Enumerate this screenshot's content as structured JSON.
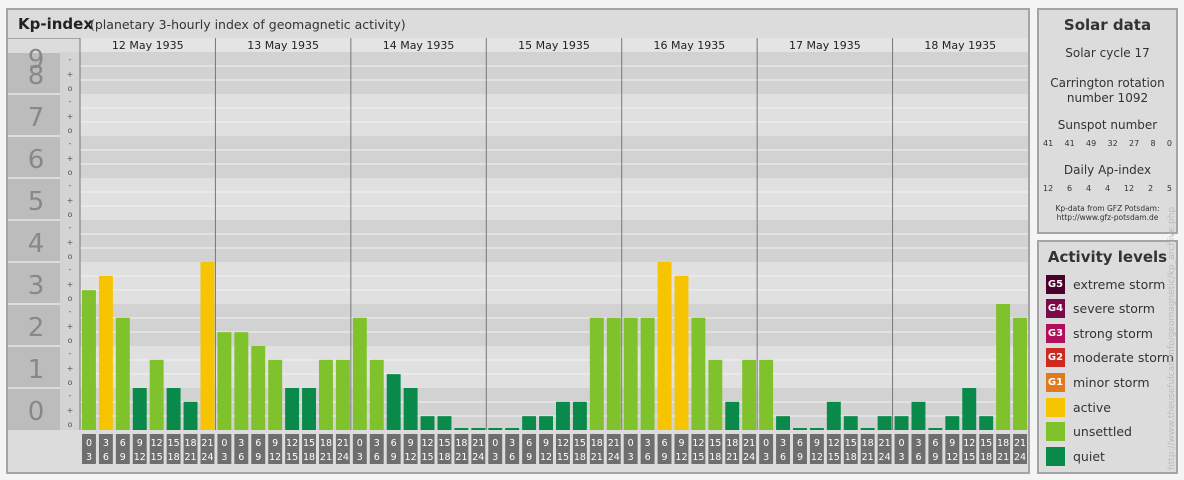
{
  "header": {
    "title": "Kp-index",
    "subtitle": "(planetary 3-hourly index of geomagnetic activity)"
  },
  "chart_data": {
    "type": "bar",
    "title": "Kp-index",
    "subtitle": "(planetary 3-hourly index of geomagnetic activity)",
    "ylim": [
      0,
      9
    ],
    "y_ticks": [
      "0",
      "1",
      "2",
      "3",
      "4",
      "5",
      "6",
      "7",
      "8",
      "9"
    ],
    "sub_ticks": [
      "-",
      "o",
      "+"
    ],
    "days": [
      "12 May 1935",
      "13 May 1935",
      "14 May 1935",
      "15 May 1935",
      "16 May 1935",
      "17 May 1935",
      "18 May 1935"
    ],
    "intervals": [
      [
        "0",
        "3"
      ],
      [
        "3",
        "6"
      ],
      [
        "6",
        "9"
      ],
      [
        "9",
        "12"
      ],
      [
        "12",
        "15"
      ],
      [
        "15",
        "18"
      ],
      [
        "18",
        "21"
      ],
      [
        "21",
        "24"
      ]
    ],
    "values": [
      [
        3.33,
        3.67,
        2.67,
        1.0,
        1.67,
        1.0,
        0.67,
        4.0
      ],
      [
        2.33,
        2.33,
        2.0,
        1.67,
        1.0,
        1.0,
        1.67,
        1.67
      ],
      [
        2.67,
        1.67,
        1.33,
        1.0,
        0.33,
        0.33,
        0.0,
        0.0
      ],
      [
        0.0,
        0.0,
        0.33,
        0.33,
        0.67,
        0.67,
        2.67,
        2.67
      ],
      [
        2.67,
        2.67,
        4.0,
        3.67,
        2.67,
        1.67,
        0.67,
        1.67
      ],
      [
        1.67,
        0.33,
        0.0,
        0.0,
        0.67,
        0.33,
        0.0,
        0.33
      ],
      [
        0.33,
        0.67,
        0.0,
        0.33,
        1.0,
        0.33,
        3.0,
        2.67
      ]
    ],
    "grid": true,
    "legend_position": "right"
  },
  "colors": {
    "quiet": "#0a8a4a",
    "unsettled": "#7fc22b",
    "active": "#f6c400",
    "G1": "#e07a1f",
    "G2": "#cc2a1f",
    "G3": "#b0105a",
    "G4": "#7a0a4a",
    "G5": "#4a0028"
  },
  "solar": {
    "title": "Solar data",
    "cycle": "Solar cycle 17",
    "carrington_line1": "Carrington rotation",
    "carrington_line2": "number 1092",
    "sunspot_label": "Sunspot number",
    "sunspot_values": [
      "41",
      "41",
      "49",
      "32",
      "27",
      "8",
      "0"
    ],
    "ap_label": "Daily Ap-index",
    "ap_values": [
      "12",
      "6",
      "4",
      "4",
      "12",
      "2",
      "5"
    ],
    "source_line1": "Kp-data from GFZ Potsdam:",
    "source_line2": "http://www.gfz-potsdam.de"
  },
  "legend": {
    "title": "Activity levels",
    "items": [
      {
        "badge": "G5",
        "label": "extreme storm",
        "color": "#4a0028"
      },
      {
        "badge": "G4",
        "label": "severe storm",
        "color": "#7a0a4a"
      },
      {
        "badge": "G3",
        "label": "strong storm",
        "color": "#b0105a"
      },
      {
        "badge": "G2",
        "label": "moderate storm",
        "color": "#cc2a1f"
      },
      {
        "badge": "G1",
        "label": "minor storm",
        "color": "#e07a1f"
      },
      {
        "badge": "",
        "label": "active",
        "color": "#f6c400"
      },
      {
        "badge": "",
        "label": "unsettled",
        "color": "#7fc22b"
      },
      {
        "badge": "",
        "label": "quiet",
        "color": "#0a8a4a"
      }
    ]
  },
  "credit": "http://www.theusefulcan.info/geomagnetic/kp_archive.php"
}
